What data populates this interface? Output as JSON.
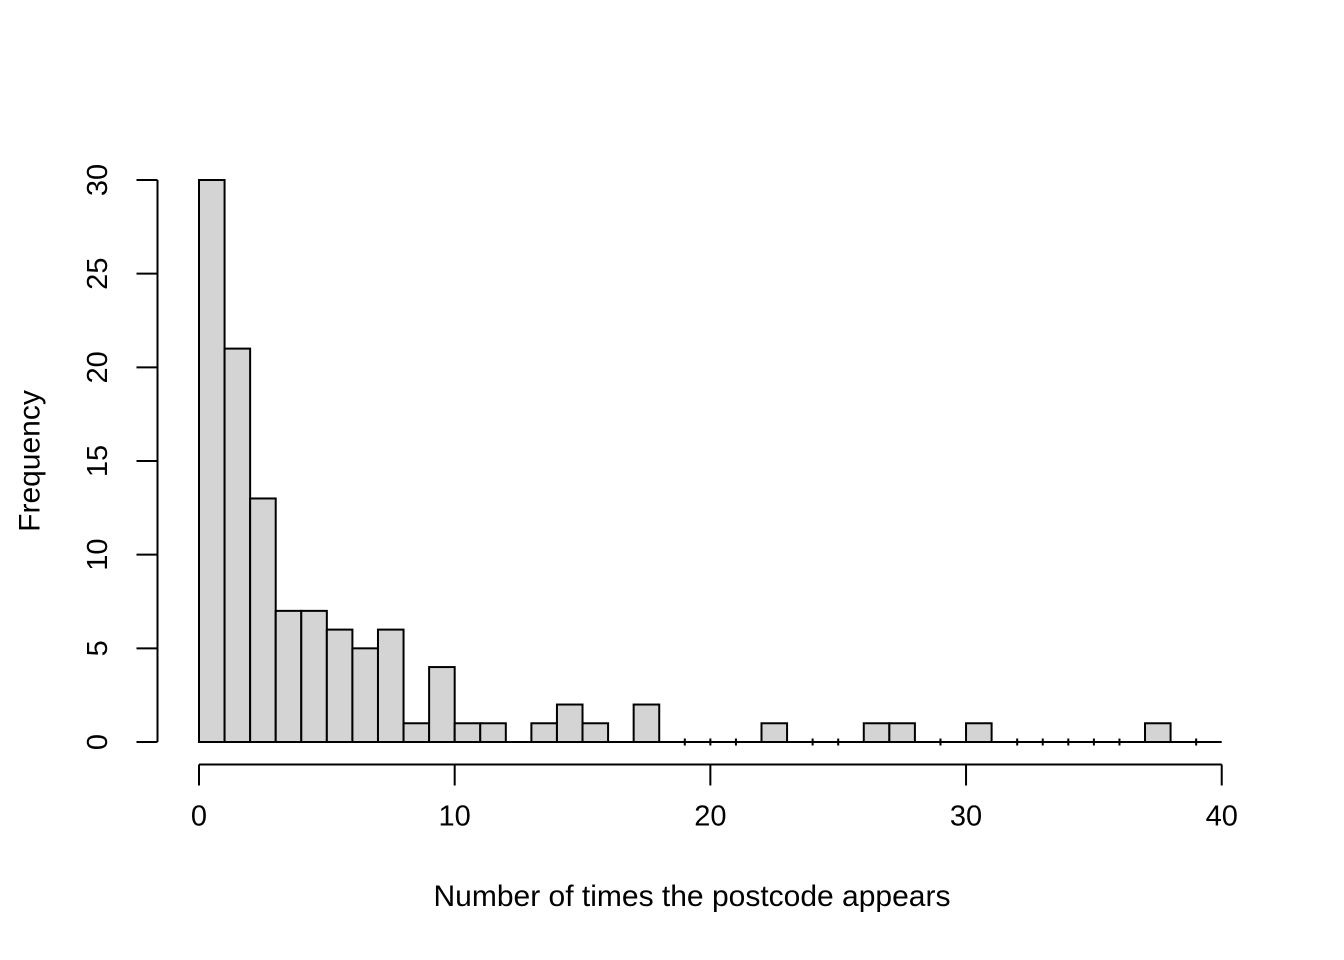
{
  "chart_data": {
    "type": "bar",
    "subtype": "histogram",
    "xlabel": "Number of times the postcode appears",
    "ylabel": "Frequency",
    "bin_start": 0,
    "bin_width": 1,
    "categories": [
      "0-1",
      "1-2",
      "2-3",
      "3-4",
      "4-5",
      "5-6",
      "6-7",
      "7-8",
      "8-9",
      "9-10",
      "10-11",
      "11-12",
      "12-13",
      "13-14",
      "14-15",
      "15-16",
      "16-17",
      "17-18",
      "18-19",
      "19-20",
      "20-21",
      "21-22",
      "22-23",
      "23-24",
      "24-25",
      "25-26",
      "26-27",
      "27-28",
      "28-29",
      "29-30",
      "30-31",
      "31-32",
      "32-33",
      "33-34",
      "34-35",
      "35-36",
      "36-37",
      "37-38",
      "38-39",
      "39-40"
    ],
    "values": [
      30,
      21,
      13,
      7,
      7,
      6,
      5,
      6,
      1,
      4,
      1,
      1,
      0,
      1,
      2,
      1,
      0,
      2,
      0,
      0,
      0,
      0,
      1,
      0,
      0,
      0,
      1,
      1,
      0,
      0,
      1,
      0,
      0,
      0,
      0,
      0,
      0,
      1,
      0,
      0
    ],
    "x_ticks": [
      0,
      10,
      20,
      30,
      40
    ],
    "y_ticks": [
      0,
      5,
      10,
      15,
      20,
      25,
      30
    ],
    "xlim": [
      0,
      40
    ],
    "ylim": [
      0,
      30
    ],
    "grid": "off",
    "legend": "none",
    "bar_fill": "#d4d4d4",
    "bar_stroke": "#000000",
    "axis_color": "#000000",
    "background": "#ffffff"
  }
}
